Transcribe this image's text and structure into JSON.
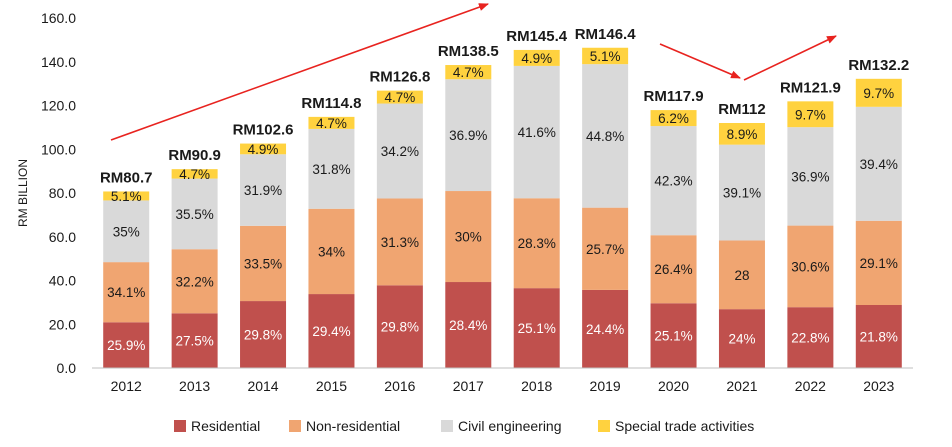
{
  "chart_data": {
    "type": "bar",
    "stacked": true,
    "ylabel": "RM BILLION",
    "ylim": [
      0,
      160
    ],
    "yticks": [
      "0.0",
      "20.0",
      "40.0",
      "60.0",
      "80.0",
      "100.0",
      "120.0",
      "140.0",
      "160.0"
    ],
    "categories": [
      "2012",
      "2013",
      "2014",
      "2015",
      "2016",
      "2017",
      "2018",
      "2019",
      "2020",
      "2021",
      "2022",
      "2023"
    ],
    "totals": [
      80.7,
      90.9,
      102.6,
      114.8,
      126.8,
      138.5,
      145.4,
      146.4,
      117.9,
      112,
      121.9,
      132.2
    ],
    "total_labels": [
      "RM80.7",
      "RM90.9",
      "RM102.6",
      "RM114.8",
      "RM126.8",
      "RM138.5",
      "RM145.4",
      "RM146.4",
      "RM117.9",
      "RM112",
      "RM121.9",
      "RM132.2"
    ],
    "series": [
      {
        "name": "Residential",
        "color": "#c0504d",
        "label_color": "#ffffff",
        "values": [
          20.9,
          25.0,
          30.6,
          33.8,
          37.8,
          39.3,
          36.5,
          35.7,
          29.6,
          26.9,
          27.8,
          28.8
        ],
        "labels": [
          "25.9%",
          "27.5%",
          "29.8%",
          "29.4%",
          "29.8%",
          "28.4%",
          "25.1%",
          "24.4%",
          "25.1%",
          "24%",
          "22.8%",
          "21.8%"
        ]
      },
      {
        "name": "Non-residential",
        "color": "#f0a571",
        "label_color": "#1a1a1a",
        "values": [
          27.5,
          29.3,
          34.4,
          39.0,
          39.7,
          41.6,
          41.1,
          37.6,
          31.1,
          31.4,
          37.3,
          38.5
        ],
        "labels": [
          "34.1%",
          "32.2%",
          "33.5%",
          "34%",
          "31.3%",
          "30%",
          "28.3%",
          "25.7%",
          "26.4%",
          "28",
          "30.6%",
          "29.1%"
        ]
      },
      {
        "name": "Civil engineering",
        "color": "#d9d9d9",
        "label_color": "#1a1a1a",
        "values": [
          28.2,
          32.3,
          32.7,
          36.5,
          43.4,
          51.1,
          60.5,
          65.6,
          49.9,
          43.8,
          45.0,
          52.1
        ],
        "labels": [
          "35%",
          "35.5%",
          "31.9%",
          "31.8%",
          "34.2%",
          "36.9%",
          "41.6%",
          "44.8%",
          "42.3%",
          "39.1%",
          "36.9%",
          "39.4%"
        ]
      },
      {
        "name": "Special trade activities",
        "color": "#ffd23f",
        "label_color": "#1a1a1a",
        "values": [
          4.1,
          4.3,
          4.9,
          5.5,
          5.9,
          6.5,
          7.3,
          7.5,
          7.3,
          9.9,
          11.8,
          12.8
        ],
        "labels": [
          "5.1%",
          "4.7%",
          "4.9%",
          "4.7%",
          "4.7%",
          "4.7%",
          "4.9%",
          "5.1%",
          "6.2%",
          "8.9%",
          "9.7%",
          "9.7%"
        ]
      }
    ],
    "legend_position": "bottom",
    "arrow_color": "#e8231f",
    "grid": false
  }
}
